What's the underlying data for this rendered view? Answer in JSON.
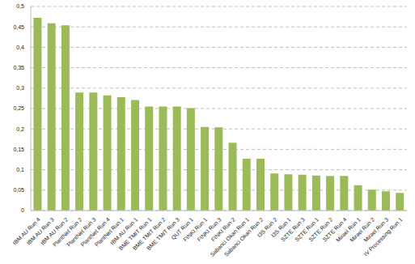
{
  "chart_data": {
    "type": "bar",
    "categories": [
      "IBM AU Run 4",
      "IBM AU Run 3",
      "IBM AU Run 2",
      "PlantNet Run 2",
      "PlantNet Run 3",
      "PlantNet Run 4",
      "PlantNet Run 1",
      "IBM AU Run 1",
      "BME TMIT Run 1",
      "BME TMIT Run 2",
      "BME TMIT Run 3",
      "QUT Run 1",
      "FINKI Run 1",
      "FINKI Run 3",
      "FINKI Run 2",
      "Sabanci Okan Run 1",
      "Sabanci Okan Run 2",
      "I3S Run 2",
      "I3S Run 1",
      "SZTE Run 3",
      "SZTE Run 1",
      "SZTE Run 2",
      "SZTE Run 4",
      "Mirael Run 1",
      "Mirael Run 2",
      "Mirael Run 3",
      "IV Processing Run 1"
    ],
    "values": [
      0.472,
      0.459,
      0.454,
      0.289,
      0.289,
      0.282,
      0.278,
      0.271,
      0.255,
      0.255,
      0.255,
      0.251,
      0.205,
      0.204,
      0.166,
      0.127,
      0.127,
      0.091,
      0.089,
      0.088,
      0.086,
      0.085,
      0.085,
      0.062,
      0.051,
      0.047,
      0.043
    ],
    "color": "#9bbb59",
    "ylim": [
      0,
      0.5
    ],
    "yticks": [
      0,
      {
        "value": 0.05,
        "label": "0,05"
      },
      {
        "value": 0.1,
        "label": "0,1"
      },
      {
        "value": 0.15,
        "label": "0,15"
      },
      {
        "value": 0.2,
        "label": "0,2"
      },
      {
        "value": 0.25,
        "label": "0,25"
      },
      {
        "value": 0.3,
        "label": "0,3"
      },
      {
        "value": 0.35,
        "label": "0,35"
      },
      {
        "value": 0.4,
        "label": "0,4"
      },
      {
        "value": 0.45,
        "label": "0,45"
      },
      {
        "value": 0.5,
        "label": "0,5"
      }
    ],
    "grid": true
  }
}
